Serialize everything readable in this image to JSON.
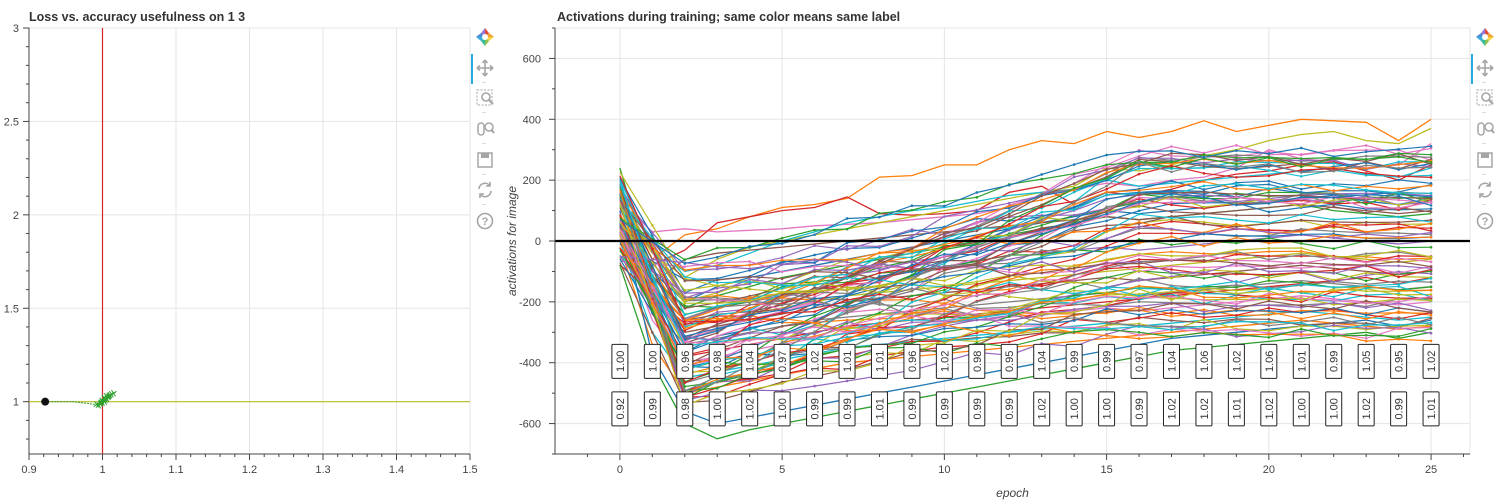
{
  "left_panel": {
    "chart_data": {
      "type": "line",
      "title": "Loss vs. accuracy usefulness on 1 3",
      "xlabel": "",
      "ylabel": "",
      "xlim": [
        0.9,
        1.5
      ],
      "ylim": [
        0.72,
        3.0
      ],
      "x_ticks": [
        0.9,
        1,
        1.1,
        1.2,
        1.3,
        1.4,
        1.5
      ],
      "x_tick_labels": [
        "0.9",
        "1",
        "1.1",
        "1.2",
        "1.3",
        "1.4",
        "1.5"
      ],
      "y_ticks": [
        1,
        1.5,
        2,
        2.5,
        3
      ],
      "y_tick_labels": [
        "1",
        "1.5",
        "2",
        "2.5",
        "3"
      ],
      "reference_lines": [
        {
          "orientation": "vertical",
          "value": 1,
          "color": "#d62728"
        },
        {
          "orientation": "horizontal",
          "value": 1,
          "color": "#bcbd22"
        }
      ],
      "start_point": {
        "x": 0.922,
        "y": 1.0
      },
      "trajectory": {
        "color": "#2ca02c",
        "points": [
          [
            0.922,
            1.0
          ],
          [
            0.96,
            1.0
          ],
          [
            0.992,
            0.985
          ],
          [
            0.998,
            0.995
          ],
          [
            1.004,
            1.01
          ],
          [
            0.995,
            0.98
          ],
          [
            1.002,
            1.02
          ],
          [
            1.008,
            1.025
          ],
          [
            0.997,
            0.99
          ],
          [
            1.005,
            1.03
          ],
          [
            1.01,
            1.035
          ],
          [
            1.0,
            0.995
          ],
          [
            1.006,
            1.015
          ],
          [
            1.012,
            1.04
          ],
          [
            0.999,
            1.005
          ],
          [
            1.015,
            1.045
          ],
          [
            1.003,
            1.0
          ],
          [
            1.009,
            1.03
          ]
        ]
      },
      "grid": true
    }
  },
  "right_panel": {
    "chart_data": {
      "type": "line",
      "title": "Activations during training; same color means same label",
      "xlabel": "epoch",
      "ylabel": "activations for image",
      "xlim": [
        -2,
        26.2
      ],
      "ylim": [
        -700,
        700
      ],
      "x_ticks": [
        0,
        5,
        10,
        15,
        20,
        25
      ],
      "x_tick_labels": [
        "0",
        "5",
        "10",
        "15",
        "20",
        "25"
      ],
      "y_ticks": [
        -600,
        -400,
        -200,
        0,
        200,
        400,
        600
      ],
      "y_tick_labels": [
        "-600",
        "-400",
        "-200",
        "0",
        "200",
        "400",
        "600"
      ],
      "zero_line": 0,
      "grid": true,
      "series_count": 100,
      "representative_series": [
        {
          "color": "#ff7f0e",
          "values": [
            160,
            -60,
            20,
            40,
            80,
            110,
            120,
            140,
            210,
            215,
            250,
            250,
            300,
            330,
            320,
            360,
            340,
            360,
            395,
            360,
            380,
            400,
            395,
            390,
            330,
            400
          ]
        },
        {
          "color": "#e377c2",
          "values": [
            130,
            30,
            40,
            30,
            35,
            40,
            50,
            55,
            60,
            70,
            80,
            90,
            110,
            150,
            170,
            190,
            180,
            200,
            210,
            240,
            300,
            270,
            260,
            240,
            250,
            320
          ]
        },
        {
          "color": "#d62728",
          "values": [
            140,
            -80,
            -30,
            60,
            80,
            100,
            110,
            145,
            90,
            85,
            90,
            100,
            160,
            180,
            120,
            160,
            150,
            170,
            200,
            220,
            230,
            250,
            260,
            230,
            200,
            250
          ]
        },
        {
          "color": "#bcbd22",
          "values": [
            120,
            -40,
            -120,
            -60,
            -20,
            0,
            20,
            40,
            60,
            80,
            100,
            120,
            140,
            160,
            180,
            240,
            230,
            250,
            280,
            300,
            330,
            350,
            360,
            330,
            320,
            370
          ]
        },
        {
          "color": "#17becf",
          "values": [
            180,
            -20,
            -100,
            -80,
            -40,
            0,
            30,
            60,
            80,
            100,
            110,
            130,
            150,
            160,
            170,
            200,
            180,
            190,
            200,
            210,
            220,
            230,
            240,
            220,
            210,
            240
          ]
        },
        {
          "color": "#1f77b4",
          "values": [
            150,
            -100,
            -200,
            -150,
            -120,
            -100,
            -80,
            -60,
            -40,
            -20,
            0,
            20,
            40,
            60,
            80,
            100,
            90,
            100,
            110,
            120,
            130,
            140,
            150,
            130,
            120,
            140
          ]
        },
        {
          "color": "#2ca02c",
          "values": [
            240,
            -120,
            -220,
            -180,
            -150,
            -120,
            -100,
            -80,
            -60,
            -40,
            -20,
            0,
            20,
            40,
            60,
            80,
            70,
            80,
            90,
            100,
            110,
            120,
            100,
            90,
            80,
            90
          ]
        },
        {
          "color": "#9467bd",
          "values": [
            90,
            -160,
            -260,
            -220,
            -200,
            -180,
            -160,
            -140,
            -120,
            -100,
            -90,
            -80,
            -60,
            -40,
            -30,
            -20,
            -30,
            -20,
            -10,
            0,
            10,
            20,
            10,
            0,
            -10,
            0
          ]
        },
        {
          "color": "#8c564b",
          "values": [
            60,
            -200,
            -300,
            -280,
            -260,
            -240,
            -220,
            -200,
            -190,
            -180,
            -170,
            -160,
            -150,
            -140,
            -130,
            -120,
            -130,
            -120,
            -110,
            -100,
            -90,
            -80,
            -90,
            -100,
            -110,
            -100
          ]
        },
        {
          "color": "#7f7f7f",
          "values": [
            40,
            -220,
            -340,
            -320,
            -300,
            -280,
            -260,
            -250,
            -240,
            -230,
            -220,
            -210,
            -200,
            -190,
            -180,
            -170,
            -180,
            -170,
            -160,
            -150,
            -140,
            -130,
            -140,
            -150,
            -160,
            -150
          ]
        },
        {
          "color": "#e377c2",
          "values": [
            20,
            -260,
            -400,
            -380,
            -360,
            -340,
            -320,
            -300,
            -290,
            -280,
            -270,
            -260,
            -250,
            -240,
            -230,
            -220,
            -230,
            -220,
            -210,
            -200,
            -190,
            -180,
            -190,
            -200,
            -210,
            -200
          ]
        },
        {
          "color": "#17becf",
          "values": [
            0,
            -300,
            -450,
            -430,
            -410,
            -390,
            -370,
            -350,
            -340,
            -330,
            -320,
            -310,
            -300,
            -290,
            -280,
            -270,
            -280,
            -270,
            -260,
            -250,
            -240,
            -230,
            -240,
            -250,
            -260,
            -250
          ]
        },
        {
          "color": "#ff7f0e",
          "values": [
            -20,
            -340,
            -500,
            -480,
            -460,
            -440,
            -420,
            -400,
            -390,
            -380,
            -370,
            -360,
            -350,
            -340,
            -330,
            -320,
            -310,
            -300,
            -290,
            -280,
            -270,
            -260,
            -270,
            -280,
            -290,
            -280
          ]
        },
        {
          "color": "#2ca02c",
          "values": [
            -80,
            -400,
            -600,
            -650,
            -620,
            -600,
            -580,
            -560,
            -540,
            -520,
            -500,
            -480,
            -460,
            -440,
            -420,
            -400,
            -380,
            -360,
            -350,
            -340,
            -330,
            -320,
            -310,
            -300,
            -320,
            -300
          ]
        },
        {
          "color": "#1f77b4",
          "values": [
            100,
            -380,
            -560,
            -600,
            -580,
            -560,
            -540,
            -520,
            -500,
            -480,
            -460,
            -440,
            -420,
            -400,
            -380,
            -360,
            -340,
            -320,
            -310,
            -300,
            -290,
            -280,
            -270,
            -260,
            -280,
            -260
          ]
        },
        {
          "color": "#d62728",
          "values": [
            80,
            -240,
            -380,
            -360,
            -340,
            -320,
            -300,
            -280,
            -270,
            -260,
            -250,
            -240,
            -230,
            -220,
            -210,
            -200,
            -190,
            -180,
            -170,
            -160,
            -150,
            -140,
            -130,
            -120,
            -140,
            -120
          ]
        },
        {
          "color": "#8c564b",
          "values": [
            110,
            -140,
            -60,
            -40,
            -30,
            -20,
            -10,
            0,
            10,
            20,
            30,
            40,
            50,
            60,
            70,
            80,
            70,
            80,
            90,
            100,
            110,
            120,
            110,
            100,
            90,
            100
          ]
        },
        {
          "color": "#bcbd22",
          "values": [
            70,
            -180,
            -280,
            -260,
            -240,
            -220,
            -200,
            -180,
            -170,
            -160,
            -150,
            -140,
            -130,
            -120,
            -110,
            -100,
            -90,
            -80,
            -70,
            -60,
            -50,
            -40,
            -50,
            -60,
            -70,
            -60
          ]
        }
      ],
      "annotations": [
        {
          "x": 0,
          "top": "1.00",
          "bottom": "0.92"
        },
        {
          "x": 1,
          "top": "1.00",
          "bottom": "0.99"
        },
        {
          "x": 2,
          "top": "0.96",
          "bottom": "0.98"
        },
        {
          "x": 3,
          "top": "0.98",
          "bottom": "1.00"
        },
        {
          "x": 4,
          "top": "1.04",
          "bottom": "1.02"
        },
        {
          "x": 5,
          "top": "0.97",
          "bottom": "1.00"
        },
        {
          "x": 6,
          "top": "1.02",
          "bottom": "0.99"
        },
        {
          "x": 7,
          "top": "1.01",
          "bottom": "0.99"
        },
        {
          "x": 8,
          "top": "1.01",
          "bottom": "1.01"
        },
        {
          "x": 9,
          "top": "0.96",
          "bottom": "0.99"
        },
        {
          "x": 10,
          "top": "1.02",
          "bottom": "0.99"
        },
        {
          "x": 11,
          "top": "0.98",
          "bottom": "0.99"
        },
        {
          "x": 12,
          "top": "0.95",
          "bottom": "0.99"
        },
        {
          "x": 13,
          "top": "1.04",
          "bottom": "1.02"
        },
        {
          "x": 14,
          "top": "0.99",
          "bottom": "1.00"
        },
        {
          "x": 15,
          "top": "0.99",
          "bottom": "1.00"
        },
        {
          "x": 16,
          "top": "0.97",
          "bottom": "0.99"
        },
        {
          "x": 17,
          "top": "1.04",
          "bottom": "1.02"
        },
        {
          "x": 18,
          "top": "1.06",
          "bottom": "1.02"
        },
        {
          "x": 19,
          "top": "1.02",
          "bottom": "1.01"
        },
        {
          "x": 20,
          "top": "1.06",
          "bottom": "1.02"
        },
        {
          "x": 21,
          "top": "1.01",
          "bottom": "1.00"
        },
        {
          "x": 22,
          "top": "0.99",
          "bottom": "1.00"
        },
        {
          "x": 23,
          "top": "1.05",
          "bottom": "1.02"
        },
        {
          "x": 24,
          "top": "0.95",
          "bottom": "0.99"
        },
        {
          "x": 25,
          "top": "1.02",
          "bottom": "1.01"
        }
      ]
    }
  },
  "toolbar": {
    "tools": [
      {
        "name": "bokeh-logo-icon"
      },
      {
        "name": "pan-tool-icon"
      },
      {
        "name": "box-zoom-tool-icon"
      },
      {
        "name": "wheel-zoom-tool-icon"
      },
      {
        "name": "save-tool-icon"
      },
      {
        "name": "reset-tool-icon"
      },
      {
        "name": "help-tool-icon"
      }
    ],
    "active_color": "#26aae1",
    "icon_color": "#a5a5a5"
  }
}
